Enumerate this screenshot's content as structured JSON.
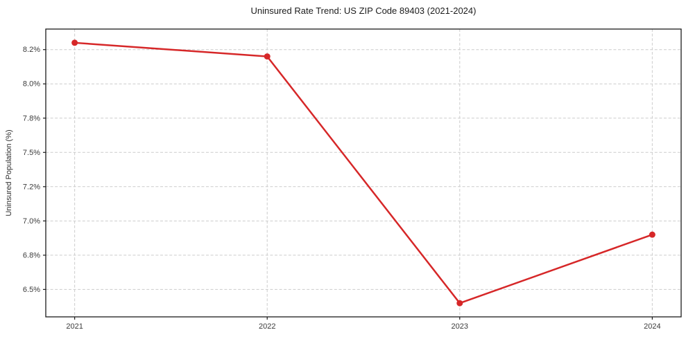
{
  "chart_data": {
    "type": "line",
    "title": "Uninsured Rate Trend: US ZIP Code 89403 (2021-2024)",
    "xlabel": "",
    "ylabel": "Uninsured Population (%)",
    "categories": [
      "2021",
      "2022",
      "2023",
      "2024"
    ],
    "series": [
      {
        "name": "Uninsured rate",
        "values": [
          8.3,
          8.2,
          6.4,
          6.9
        ]
      }
    ],
    "unit": "%",
    "ylim": [
      6.3,
      8.4
    ],
    "yticks": {
      "values": [
        6.5,
        6.75,
        7.0,
        7.25,
        7.5,
        7.75,
        8.0,
        8.25
      ],
      "labels": [
        "6.5%",
        "6.8%",
        "7.0%",
        "7.2%",
        "7.5%",
        "7.8%",
        "8.0%",
        "8.2%"
      ]
    },
    "grid": true,
    "grid_style": "dashed",
    "legend": "none",
    "line_color": "#d62728",
    "marker": "circle",
    "marker_radius": 4.5
  }
}
